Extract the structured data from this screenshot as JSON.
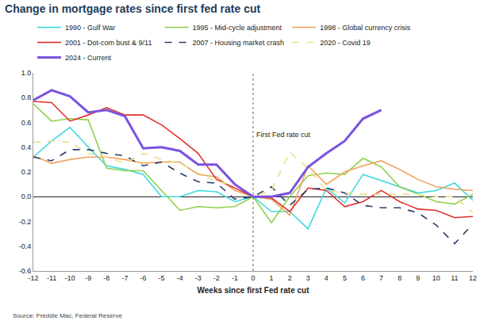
{
  "chart_data": {
    "type": "line",
    "title": "Change in mortgage rates since first fed rate cut",
    "x_label": "Weeks since first Fed rate cut",
    "annotations": [
      "First Fed rate cut"
    ],
    "source": "Source: Freddie Mac, Federal Reserve",
    "x": [
      -12,
      -11,
      -10,
      -9,
      -8,
      -7,
      -6,
      -5,
      -4,
      -3,
      -2,
      -1,
      0,
      1,
      2,
      3,
      4,
      5,
      6,
      7,
      8,
      9,
      10,
      11,
      12
    ],
    "xlim": [
      -12,
      12
    ],
    "xticks": [
      -12,
      -11,
      -10,
      -9,
      -8,
      -7,
      -6,
      -5,
      -4,
      -3,
      -2,
      -1,
      0,
      1,
      2,
      3,
      4,
      5,
      6,
      7,
      8,
      9,
      10,
      11,
      12
    ],
    "ylim": [
      -0.6,
      1
    ],
    "yticks": [
      -0.6,
      -0.4,
      -0.2,
      {
        "value": 0,
        "label": "0.0"
      },
      0.2,
      0.4,
      0.6,
      0.8,
      {
        "value": 1,
        "label": "1.0"
      }
    ],
    "grid": false,
    "legend": "top",
    "series": [
      {
        "name": "1990 - Gulf War",
        "color": "#3fd8e2",
        "line_style": "solid",
        "values": [
          0.32,
          0.45,
          0.56,
          0.4,
          0.25,
          0.22,
          0.18,
          0.0,
          0.0,
          0.05,
          0.04,
          -0.04,
          0,
          -0.12,
          -0.12,
          -0.26,
          0.07,
          -0.05,
          0.18,
          0.13,
          0.08,
          0.03,
          0.05,
          0.11,
          -0.03
        ]
      },
      {
        "name": "1995 - Mid-cycle adjustment",
        "color": "#8fd14f",
        "line_style": "solid",
        "values": [
          0.75,
          0.61,
          0.63,
          0.62,
          0.23,
          0.21,
          0.21,
          0.05,
          -0.11,
          -0.08,
          -0.09,
          -0.08,
          0,
          -0.21,
          0.0,
          0.17,
          0.19,
          0.18,
          0.31,
          0.24,
          0.08,
          0.02,
          -0.04,
          -0.06,
          0.02
        ]
      },
      {
        "name": "1998 - Global currency crisis",
        "color": "#f0a35e",
        "line_style": "solid",
        "values": [
          0.33,
          0.27,
          0.3,
          0.32,
          0.32,
          0.3,
          0.27,
          0.28,
          0.28,
          0.18,
          0.16,
          0.05,
          0,
          -0.02,
          -0.15,
          0.25,
          0.1,
          0.2,
          0.25,
          0.29,
          0.22,
          0.14,
          0.08,
          0.06,
          0.05
        ]
      },
      {
        "name": "2001 - Dot-com bust & 9/11",
        "color": "#e0302c",
        "line_style": "solid",
        "values": [
          0.77,
          0.76,
          0.61,
          0.66,
          0.72,
          0.66,
          0.66,
          0.58,
          0.47,
          0.35,
          0.14,
          0.07,
          0,
          -0.01,
          -0.12,
          0.07,
          0.05,
          -0.08,
          -0.04,
          0.05,
          -0.04,
          -0.1,
          -0.11,
          -0.17,
          -0.16
        ]
      },
      {
        "name": "2007 - Housing market crash",
        "color": "#2c3e6b",
        "line_style": "dashed",
        "values": [
          0.32,
          0.29,
          0.38,
          0.38,
          0.35,
          0.33,
          0.25,
          0.28,
          0.19,
          0.12,
          0.11,
          -0.02,
          0,
          0.08,
          -0.07,
          0.06,
          0.07,
          0.03,
          -0.07,
          -0.09,
          -0.09,
          -0.13,
          -0.23,
          -0.38,
          -0.22
        ]
      },
      {
        "name": "2020 - Covid 19",
        "color": "#eedf8a",
        "line_style": "dashed",
        "values": [
          0.44,
          0.45,
          0.44,
          0.35,
          0.32,
          0.27,
          0.35,
          0.3,
          0.27,
          0.19,
          0.12,
          0.1,
          0,
          0.05,
          0.36,
          0.23,
          0.05,
          0.03,
          0.02,
          0.02,
          0.02,
          0.02,
          0.0,
          0.0,
          -0.13
        ]
      },
      {
        "name": "2024 - Current",
        "color": "#7b52e0",
        "line_style": "solid",
        "values": [
          0.78,
          0.86,
          0.81,
          0.68,
          0.7,
          0.65,
          0.39,
          0.4,
          0.37,
          0.26,
          0.26,
          0.1,
          0,
          0.0,
          0.03,
          0.24,
          0.35,
          0.45,
          0.63,
          0.7,
          null,
          null,
          null,
          null,
          null
        ]
      }
    ]
  }
}
